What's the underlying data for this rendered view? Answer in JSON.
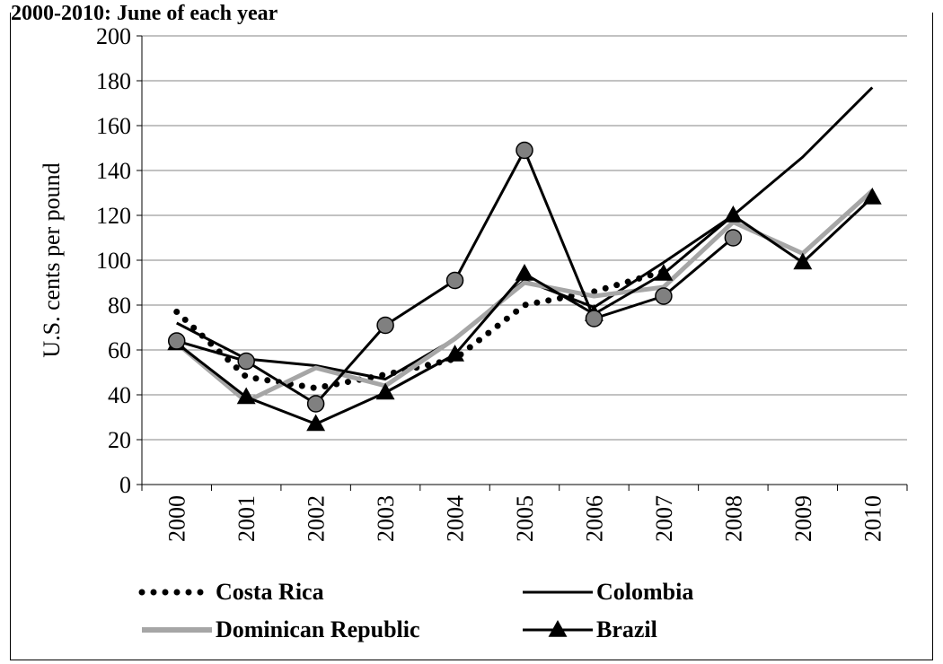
{
  "chart_data": {
    "type": "line",
    "title": "2000-2010: June of each year",
    "xlabel": "",
    "ylabel": "U.S. cents per  pound",
    "ylim": [
      0,
      200
    ],
    "yticks": [
      0,
      20,
      40,
      60,
      80,
      100,
      120,
      140,
      160,
      180,
      200
    ],
    "grid": true,
    "legend": "bottom",
    "categories": [
      "2000",
      "2001",
      "2002",
      "2003",
      "2004",
      "2005",
      "2006",
      "2007",
      "2008",
      "2009",
      "2010"
    ],
    "series": [
      {
        "name": "Costa Rica",
        "style": "dotted",
        "color": "#000000",
        "values": [
          77,
          48,
          43,
          49,
          56,
          80,
          86,
          95,
          null,
          null,
          null
        ]
      },
      {
        "name": "Colombia",
        "style": "solid",
        "color": "#000000",
        "values": [
          72,
          56,
          53,
          47,
          65,
          91,
          79,
          99,
          120,
          146,
          177
        ]
      },
      {
        "name": "Dominican Republic",
        "style": "solid-gray",
        "color": "#a6a6a6",
        "values": [
          63,
          37,
          52,
          44,
          65,
          90,
          84,
          88,
          117,
          103,
          131
        ]
      },
      {
        "name": "Brazil",
        "style": "triangle",
        "color": "#000000",
        "values": [
          63,
          39,
          27,
          41,
          58,
          94,
          76,
          94,
          120,
          99,
          128
        ]
      },
      {
        "name": "",
        "style": "circle",
        "color": "#000000",
        "marker_fill": "#808080",
        "values": [
          64,
          55,
          36,
          71,
          91,
          149,
          74,
          84,
          110,
          null,
          null
        ]
      }
    ]
  }
}
